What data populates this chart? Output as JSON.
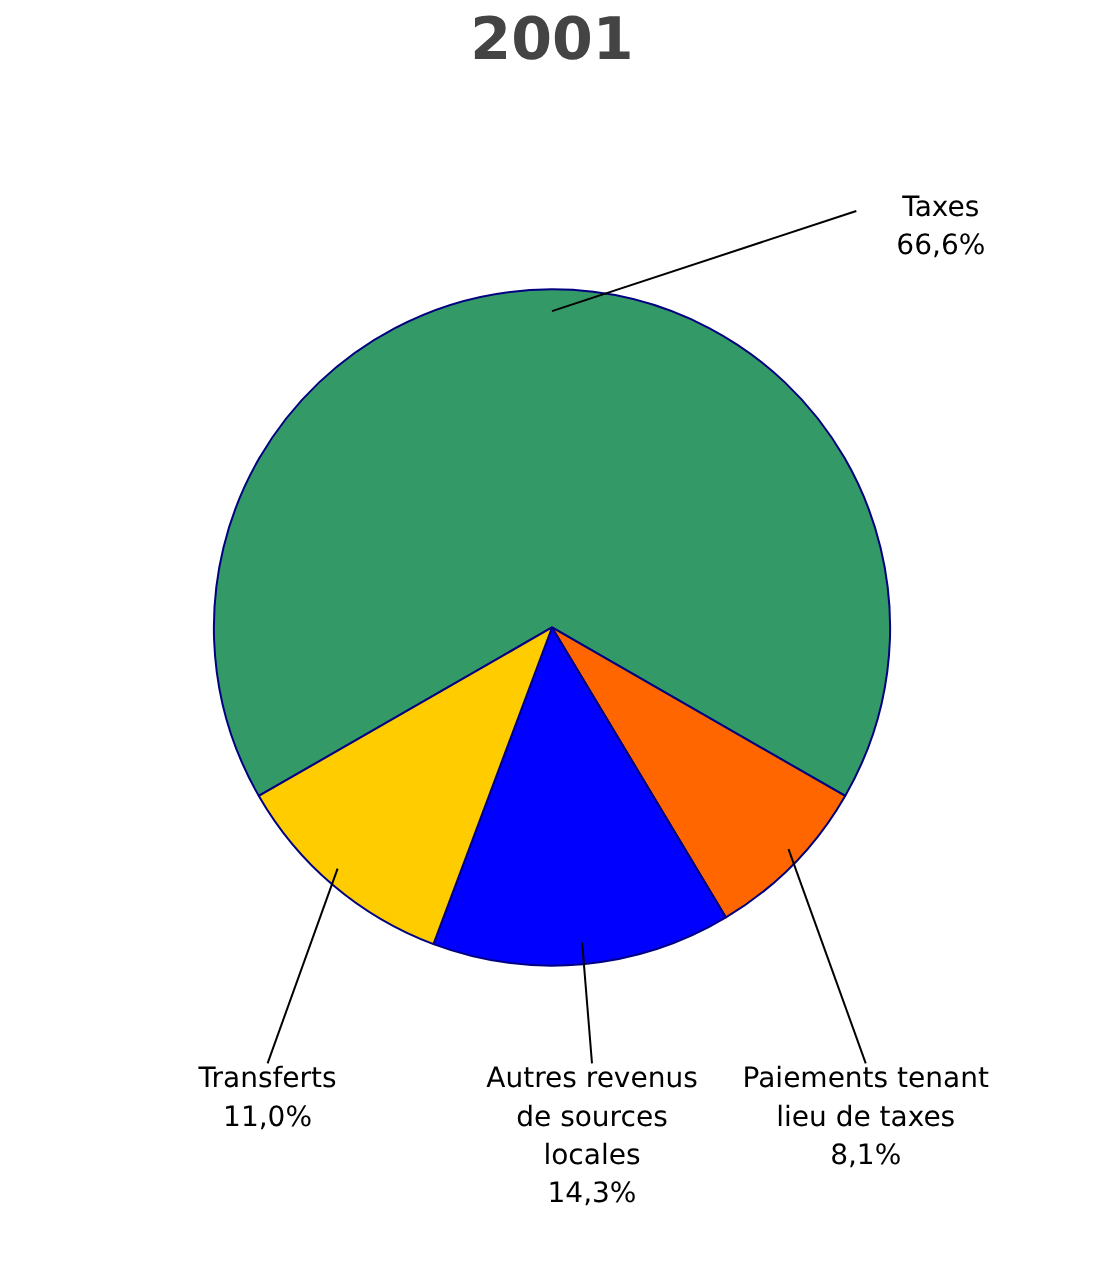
{
  "chart_data": {
    "type": "pie",
    "title": "2001",
    "categories": [
      "Taxes",
      "Paiements tenant\nlieu de taxes",
      "Autres revenus\nde sources\nlocales",
      "Transferts"
    ],
    "values": [
      66.6,
      8.1,
      14.3,
      11.0
    ],
    "colors": [
      "#339966",
      "#ff6600",
      "#0000ff",
      "#ffcc00"
    ],
    "value_labels": [
      "66,6%",
      "8,1%",
      "14,3%",
      "11,0%"
    ]
  }
}
